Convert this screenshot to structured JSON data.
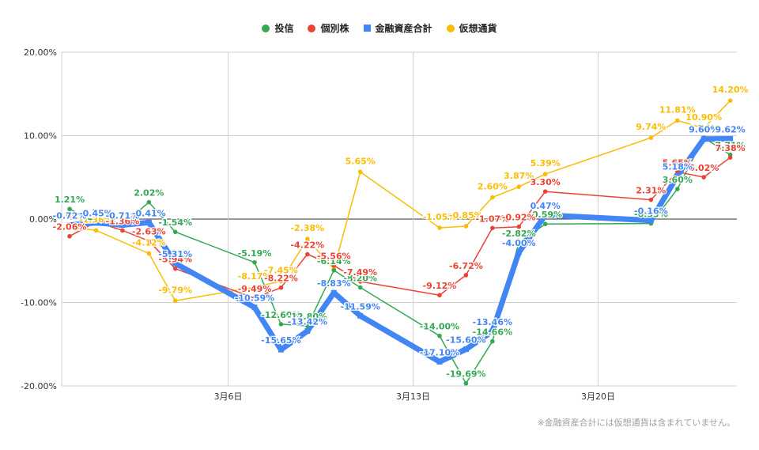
{
  "colors": {
    "toushin": "#34a853",
    "kobetsu": "#ea4335",
    "kinyu": "#4285f4",
    "kaso": "#fbbc04"
  },
  "legend": [
    {
      "label": "投信",
      "key": "toushin",
      "shape": "dot"
    },
    {
      "label": "個別株",
      "key": "kobetsu",
      "shape": "dot"
    },
    {
      "label": "金融資産合計",
      "key": "kinyu",
      "shape": "square"
    },
    {
      "label": "仮想通貨",
      "key": "kaso",
      "shape": "dot"
    }
  ],
  "footnote": "※金融資産合計には仮想通貨は含まれていません。",
  "chart_data": {
    "type": "line",
    "x": [
      "2/28",
      "3/1",
      "3/2",
      "3/3",
      "3/4",
      "3/7",
      "3/8",
      "3/9",
      "3/10",
      "3/11",
      "3/14",
      "3/15",
      "3/16",
      "3/17",
      "3/18",
      "3/22",
      "3/23",
      "3/24",
      "3/25"
    ],
    "x_ticks": [
      {
        "x": "3/6",
        "label": "3月6日"
      },
      {
        "x": "3/13",
        "label": "3月13日"
      },
      {
        "x": "3/20",
        "label": "3月20日"
      }
    ],
    "ylim": [
      -20,
      20
    ],
    "y_ticks": [
      "20.00%",
      "10.00%",
      "0.00%",
      "-10.00%",
      "-20.00%"
    ],
    "y_tick_values": [
      20,
      10,
      0,
      -10,
      -20
    ],
    "grid": true,
    "legend_position": "top-center",
    "series": [
      {
        "name": "投信",
        "key": "toushin",
        "values": [
          {
            "x": "2/28",
            "y": 1.21,
            "label": "1.21%"
          },
          {
            "x": "3/1",
            "y": -0.48,
            "label": "-0.48%"
          },
          {
            "x": "3/2",
            "y": -0.71,
            "label": "-0.71%"
          },
          {
            "x": "3/3",
            "y": 2.02,
            "label": "2.02%"
          },
          {
            "x": "3/4",
            "y": -1.54,
            "label": "-1.54%"
          },
          {
            "x": "3/7",
            "y": -5.19,
            "label": "-5.19%"
          },
          {
            "x": "3/8",
            "y": -12.6,
            "label": "-12.60%"
          },
          {
            "x": "3/9",
            "y": -12.8,
            "label": "-12.80%"
          },
          {
            "x": "3/10",
            "y": -6.14,
            "label": "-6.14%"
          },
          {
            "x": "3/11",
            "y": -8.2,
            "label": "-8.20%"
          },
          {
            "x": "3/14",
            "y": -14.0,
            "label": "-14.00%"
          },
          {
            "x": "3/15",
            "y": -19.69,
            "label": "-19.69%"
          },
          {
            "x": "3/16",
            "y": -14.66,
            "label": "-14.66%"
          },
          {
            "x": "3/17",
            "y": -2.82,
            "label": "-2.82%"
          },
          {
            "x": "3/18",
            "y": -0.59,
            "label": "-0.59%"
          },
          {
            "x": "3/22",
            "y": -0.53,
            "label": "-0.53%"
          },
          {
            "x": "3/23",
            "y": 3.6,
            "label": "3.60%"
          },
          {
            "x": "3/24",
            "y": 9.76,
            "label": "9.76%"
          },
          {
            "x": "3/25",
            "y": 7.71,
            "label": "7.71%"
          }
        ]
      },
      {
        "name": "個別株",
        "key": "kobetsu",
        "values": [
          {
            "x": "2/28",
            "y": -2.06,
            "label": "-2.06%"
          },
          {
            "x": "3/1",
            "y": -0.35,
            "label": "-0.35%"
          },
          {
            "x": "3/2",
            "y": -1.36,
            "label": "-1.36%"
          },
          {
            "x": "3/3",
            "y": -2.63,
            "label": "-2.63%"
          },
          {
            "x": "3/4",
            "y": -5.94,
            "label": "-5.94%"
          },
          {
            "x": "3/7",
            "y": -9.49,
            "label": "-9.49%"
          },
          {
            "x": "3/8",
            "y": -8.22,
            "label": "-8.22%"
          },
          {
            "x": "3/9",
            "y": -4.22,
            "label": "-4.22%"
          },
          {
            "x": "3/10",
            "y": -5.56,
            "label": "-5.56%"
          },
          {
            "x": "3/11",
            "y": -7.49,
            "label": "-7.49%"
          },
          {
            "x": "3/14",
            "y": -9.12,
            "label": "-9.12%"
          },
          {
            "x": "3/15",
            "y": -6.72,
            "label": "-6.72%"
          },
          {
            "x": "3/16",
            "y": -1.07,
            "label": "-1.07%"
          },
          {
            "x": "3/17",
            "y": -0.92,
            "label": "-0.92%"
          },
          {
            "x": "3/18",
            "y": 3.3,
            "label": "3.30%"
          },
          {
            "x": "3/22",
            "y": 2.31,
            "label": "2.31%"
          },
          {
            "x": "3/23",
            "y": 5.65,
            "label": "5.65%"
          },
          {
            "x": "3/24",
            "y": 5.02,
            "label": "5.02%"
          },
          {
            "x": "3/25",
            "y": 7.38,
            "label": "7.38%"
          }
        ]
      },
      {
        "name": "金融資産合計",
        "key": "kinyu",
        "values": [
          {
            "x": "2/28",
            "y": -0.72,
            "label": "-0.72%"
          },
          {
            "x": "3/1",
            "y": -0.45,
            "label": "-0.45%"
          },
          {
            "x": "3/2",
            "y": -0.71,
            "label": "-0.71%"
          },
          {
            "x": "3/3",
            "y": -0.41,
            "label": "-0.41%"
          },
          {
            "x": "3/4",
            "y": -5.31,
            "label": "-5.31%"
          },
          {
            "x": "3/7",
            "y": -10.59,
            "label": "-10.59%"
          },
          {
            "x": "3/8",
            "y": -15.65,
            "label": "-15.65%"
          },
          {
            "x": "3/9",
            "y": -13.42,
            "label": "-13.42%"
          },
          {
            "x": "3/10",
            "y": -8.83,
            "label": "-8.83%"
          },
          {
            "x": "3/11",
            "y": -11.59,
            "label": "-11.59%"
          },
          {
            "x": "3/14",
            "y": -17.1,
            "label": "-17.10%"
          },
          {
            "x": "3/15",
            "y": -15.6,
            "label": "-15.60%"
          },
          {
            "x": "3/16",
            "y": -13.46,
            "label": "-13.46%"
          },
          {
            "x": "3/17",
            "y": -4.0,
            "label": "-4.00%"
          },
          {
            "x": "3/18",
            "y": 0.47,
            "label": "0.47%"
          },
          {
            "x": "3/22",
            "y": -0.16,
            "label": "-0.16%"
          },
          {
            "x": "3/23",
            "y": 5.18,
            "label": "5.18%"
          },
          {
            "x": "3/24",
            "y": 9.6,
            "label": "9.60%"
          },
          {
            "x": "3/25",
            "y": 9.62,
            "label": "9.62%"
          }
        ]
      },
      {
        "name": "仮想通貨",
        "key": "kaso",
        "values": [
          {
            "x": "2/28",
            "y": -0.96,
            "label": "-0.96%"
          },
          {
            "x": "3/1",
            "y": -1.36,
            "label": "-1.36%"
          },
          {
            "x": "3/3",
            "y": -4.12,
            "label": "-4.12%"
          },
          {
            "x": "3/4",
            "y": -9.79,
            "label": "-9.79%"
          },
          {
            "x": "3/7",
            "y": -8.17,
            "label": "-8.17%"
          },
          {
            "x": "3/8",
            "y": -7.45,
            "label": "-7.45%"
          },
          {
            "x": "3/9",
            "y": -2.38,
            "label": "-2.38%"
          },
          {
            "x": "3/10",
            "y": -5.98,
            "label": "-5.98%"
          },
          {
            "x": "3/11",
            "y": 5.65,
            "label": "5.65%"
          },
          {
            "x": "3/14",
            "y": -1.05,
            "label": "-1.05%"
          },
          {
            "x": "3/15",
            "y": -0.85,
            "label": "-0.85%"
          },
          {
            "x": "3/16",
            "y": 2.6,
            "label": "2.60%"
          },
          {
            "x": "3/17",
            "y": 3.87,
            "label": "3.87%"
          },
          {
            "x": "3/18",
            "y": 5.39,
            "label": "5.39%"
          },
          {
            "x": "3/22",
            "y": 9.74,
            "label": "9.74%"
          },
          {
            "x": "3/23",
            "y": 11.81,
            "label": "11.81%"
          },
          {
            "x": "3/24",
            "y": 10.9,
            "label": "10.90%"
          },
          {
            "x": "3/25",
            "y": 14.2,
            "label": "14.20%"
          }
        ]
      }
    ]
  }
}
